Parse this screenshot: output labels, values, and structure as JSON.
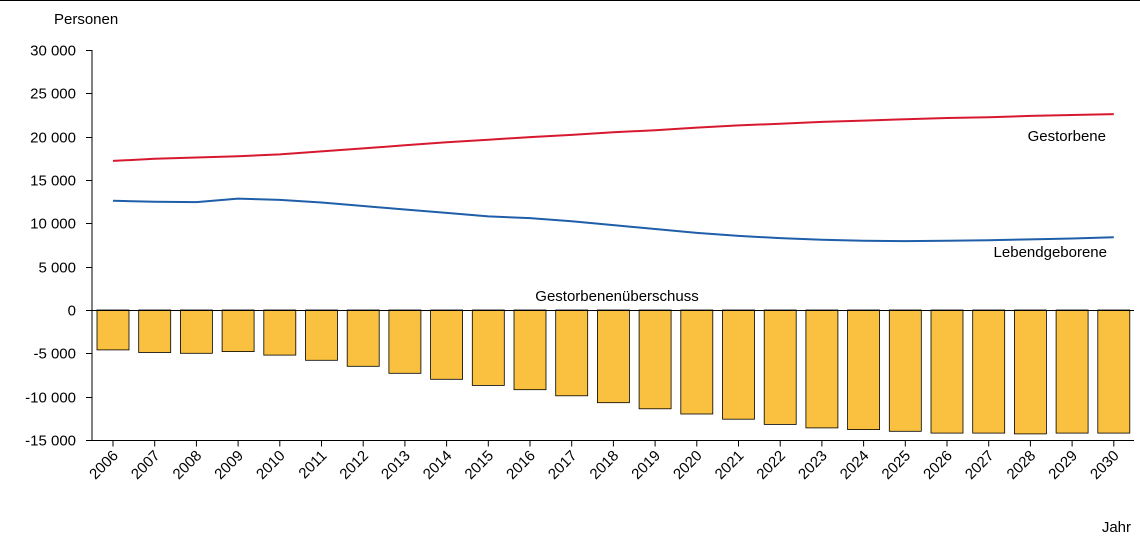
{
  "chart_data": {
    "type": "bar",
    "ylabel": "Personen",
    "xlabel": "Jahr",
    "ylim": [
      -15000,
      30000
    ],
    "yticks": [
      30000,
      25000,
      20000,
      15000,
      10000,
      5000,
      0,
      -5000,
      -10000,
      -15000
    ],
    "ytick_labels": [
      "30 000",
      "25 000",
      "20 000",
      "15 000",
      "10 000",
      "5 000",
      "0",
      "-5 000",
      "-10 000",
      "-15 000"
    ],
    "categories": [
      "2006",
      "2007",
      "2008",
      "2009",
      "2010",
      "2011",
      "2012",
      "2013",
      "2014",
      "2015",
      "2016",
      "2017",
      "2018",
      "2019",
      "2020",
      "2021",
      "2022",
      "2023",
      "2024",
      "2025",
      "2026",
      "2027",
      "2028",
      "2029",
      "2030"
    ],
    "series": [
      {
        "name": "Gestorbenenüberschuss",
        "kind": "bar",
        "color": "#f9c13f",
        "values": [
          -4600,
          -4900,
          -5000,
          -4800,
          -5200,
          -5800,
          -6500,
          -7300,
          -8000,
          -8700,
          -9200,
          -9900,
          -10700,
          -11400,
          -12000,
          -12600,
          -13200,
          -13600,
          -13800,
          -14000,
          -14200,
          -14200,
          -14300,
          -14200,
          -14200
        ]
      },
      {
        "name": "Gestorbene",
        "kind": "line",
        "color": "#d7192f",
        "values": [
          17200,
          17450,
          17600,
          17750,
          17950,
          18300,
          18650,
          19000,
          19350,
          19650,
          19950,
          20200,
          20500,
          20750,
          21050,
          21300,
          21500,
          21700,
          21850,
          22000,
          22150,
          22250,
          22400,
          22500,
          22600
        ]
      },
      {
        "name": "Lebendgeborene",
        "kind": "line",
        "color": "#1f5ea8",
        "values": [
          12600,
          12500,
          12450,
          12850,
          12700,
          12400,
          12000,
          11600,
          11200,
          10800,
          10600,
          10250,
          9800,
          9350,
          8900,
          8550,
          8300,
          8100,
          8000,
          7950,
          8000,
          8050,
          8150,
          8250,
          8400
        ]
      }
    ],
    "grid": false
  }
}
